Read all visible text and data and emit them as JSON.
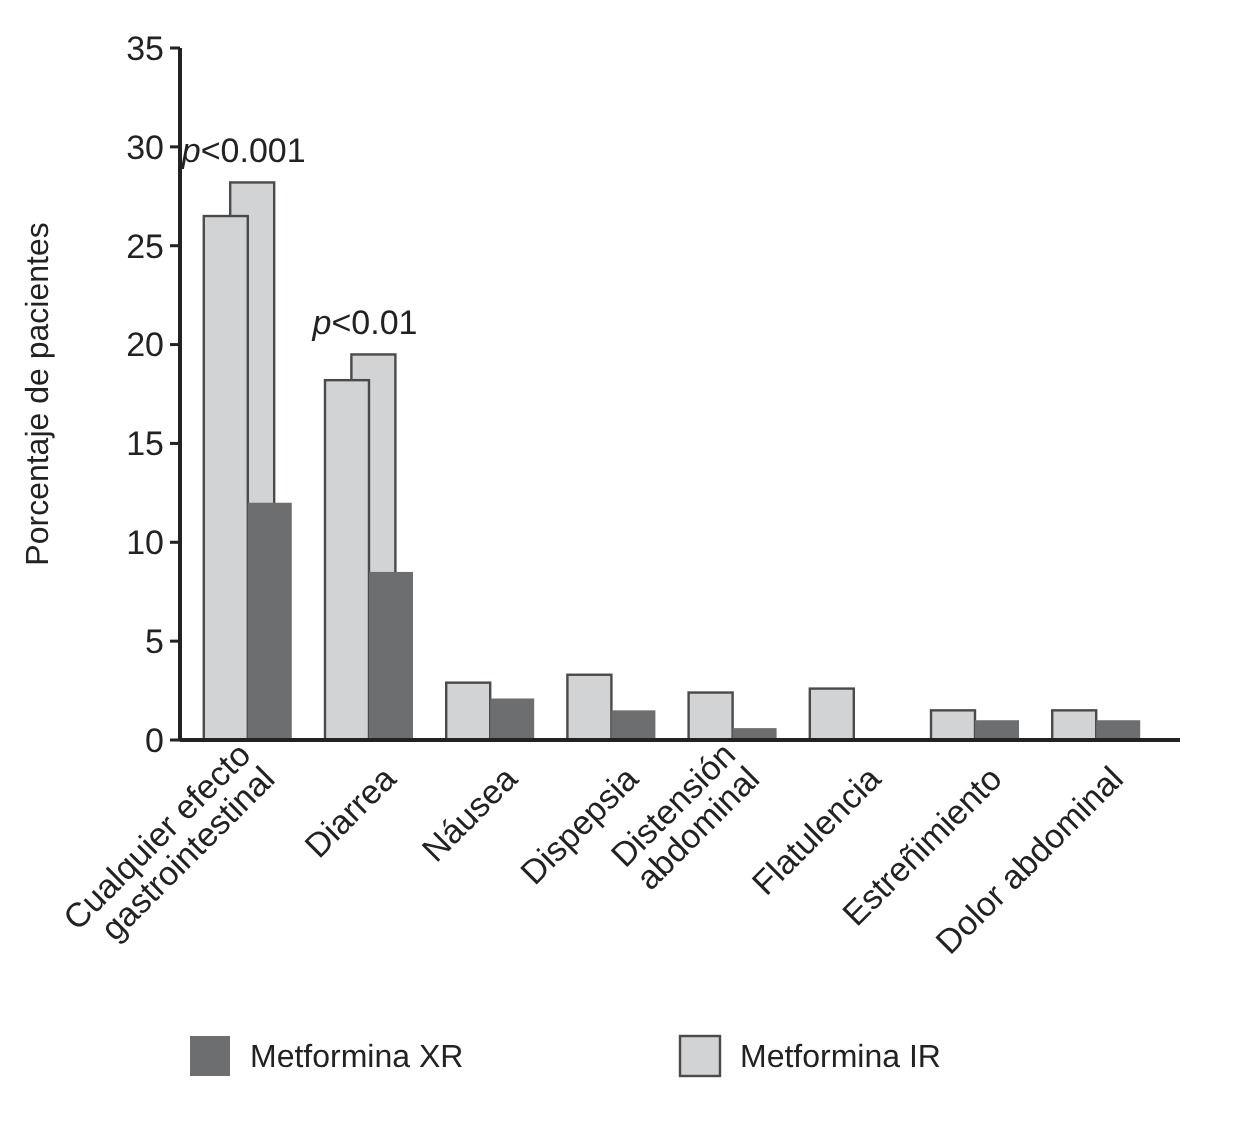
{
  "chart_data": {
    "type": "bar",
    "ylabel": "Porcentaje de pacientes",
    "categories": [
      "Cualquier efecto\ngastrointestinal",
      "Diarrea",
      "Náusea",
      "Dispepsia",
      "Distensión\nabdominal",
      "Flatulencia",
      "Estreñimiento",
      "Dolor abdominal"
    ],
    "series": [
      {
        "name": "Metformina IR",
        "color": "#d2d3d5",
        "values": [
          28.2,
          19.5,
          2.9,
          3.3,
          2.4,
          2.6,
          1.5,
          1.5
        ]
      },
      {
        "color": "#d2d3d5",
        "values": [
          26.5,
          18.2,
          null,
          null,
          null,
          null,
          null,
          null
        ]
      },
      {
        "name": "Metformina XR",
        "color": "#6d6e70",
        "values": [
          12.0,
          8.5,
          2.1,
          1.5,
          0.6,
          null,
          1.0,
          1.0
        ]
      }
    ],
    "ylim": [
      0,
      35
    ],
    "yticks": [
      0,
      5,
      10,
      15,
      20,
      25,
      30,
      35
    ],
    "grid": false,
    "legend": "bottom",
    "annotations": [
      "p<0.001",
      "p<0.01"
    ]
  }
}
